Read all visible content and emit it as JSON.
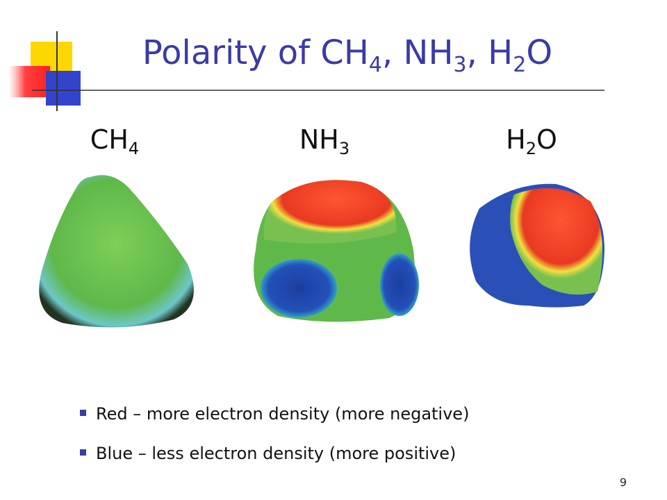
{
  "header": {
    "title_parts": [
      "Polarity of CH",
      "4",
      ", NH",
      "3",
      ", H",
      "2",
      "O"
    ]
  },
  "molecules": [
    {
      "label_parts": [
        "CH",
        "4"
      ]
    },
    {
      "label_parts": [
        "NH",
        "3"
      ]
    },
    {
      "label_parts": [
        "H",
        "2",
        "O"
      ]
    }
  ],
  "bullets": [
    "Red – more electron density (more negative)",
    "Blue – less electron density (more positive)"
  ],
  "page_number": "9"
}
